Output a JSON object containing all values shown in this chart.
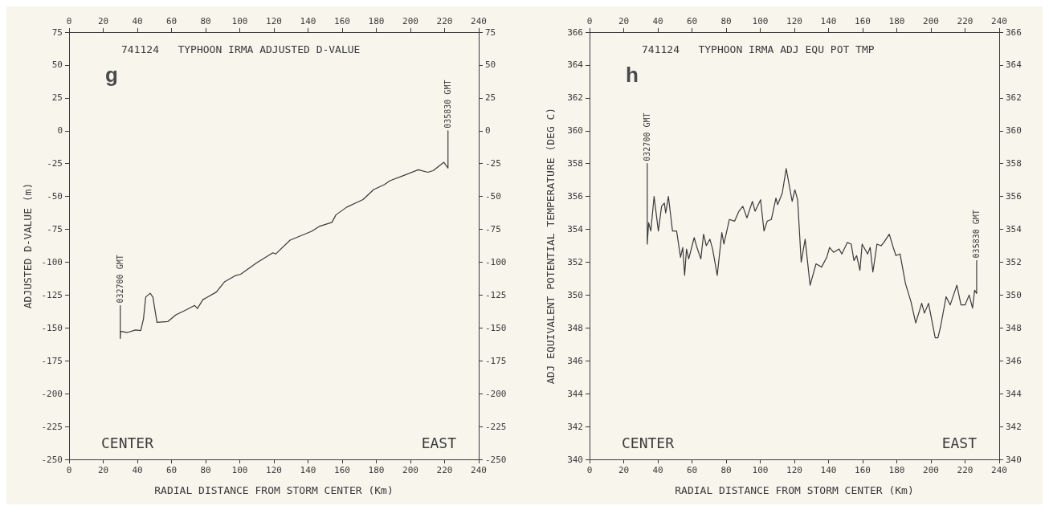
{
  "chart_data": [
    {
      "type": "line",
      "title": "741124   TYPHOON IRMA ADJUSTED D-VALUE",
      "xlabel": "RADIAL DISTANCE FROM STORM CENTER (Km)",
      "ylabel": "ADJUSTED D-VALUE (m)",
      "series": [
        {
          "color": "#3a3a3a",
          "x": [
            30,
            30,
            30.2,
            34.1,
            38.9,
            42,
            43.6,
            44.9,
            47.5,
            49.1,
            51.5,
            57.8,
            62.6,
            68.9,
            73.6,
            75.2,
            78.4,
            86.3,
            91,
            97.4,
            100.5,
            109.9,
            119.4,
            121,
            129.5,
            142.1,
            146.9,
            154,
            156.4,
            162.7,
            172.2,
            178.5,
            184.8,
            188,
            195.9,
            204.6,
            210.1,
            213.3,
            219.6,
            222,
            222
          ],
          "values": [
            -133,
            -158,
            -152.5,
            -153.5,
            -151.6,
            -152,
            -143,
            -126.5,
            -123.6,
            -126.5,
            -145.8,
            -145.2,
            -140,
            -136.1,
            -132.9,
            -135.2,
            -128.5,
            -122.7,
            -115,
            -110.2,
            -109.2,
            -100.5,
            -92.8,
            -93.8,
            -83.2,
            -76.5,
            -72.6,
            -69.7,
            -63.9,
            -58.1,
            -52.4,
            -44.7,
            -40.9,
            -38,
            -34.1,
            -29.7,
            -31.6,
            -30.4,
            -24,
            -28.4,
            0
          ]
        }
      ],
      "xlim": [
        0,
        240
      ],
      "xticks": [
        0,
        20,
        40,
        60,
        80,
        100,
        120,
        140,
        160,
        180,
        200,
        220,
        240
      ],
      "x2lim": [
        0,
        240
      ],
      "x2ticks": [
        0,
        20,
        40,
        60,
        80,
        100,
        120,
        140,
        160,
        180,
        200,
        220,
        240
      ],
      "ylim": [
        -250,
        75
      ],
      "yticks": [
        -250,
        -225,
        -200,
        -175,
        -150,
        -125,
        -100,
        -75,
        -50,
        -25,
        0,
        25,
        50,
        75
      ],
      "y2lim": [
        -250,
        75
      ],
      "y2ticks": [
        -250,
        -225,
        -200,
        -175,
        -150,
        -125,
        -100,
        -75,
        -50,
        -25,
        0,
        25,
        50,
        75
      ],
      "grid": false,
      "marker": "none",
      "line_style": "solid",
      "annotations": [
        "g",
        "CENTER",
        "EAST",
        {
          "text": "032700 GMT",
          "x": 30,
          "y": -133
        },
        {
          "text": "035830 GMT",
          "x": 222,
          "y": 0
        }
      ]
    },
    {
      "type": "line",
      "title": "741124   TYPHOON IRMA ADJ EQU POT TMP",
      "xlabel": "RADIAL DISTANCE FROM STORM CENTER (Km)",
      "ylabel": "ADJ EQUIVALENT POTENTIAL TEMPERATURE (DEG C)",
      "series": [
        {
          "color": "#3a3a3a",
          "x": [
            33.8,
            33.8,
            33.8,
            34.6,
            35.9,
            37.8,
            40.3,
            42.2,
            43.8,
            44.6,
            46.2,
            48.6,
            51,
            53.3,
            54.6,
            55.7,
            56.8,
            58.1,
            61.3,
            62.9,
            65.2,
            66.8,
            68.4,
            70.5,
            72.1,
            74.8,
            77.5,
            78.7,
            81.9,
            85,
            87.5,
            89.8,
            92.2,
            95.4,
            97,
            100.2,
            102.2,
            104.1,
            106.5,
            109.2,
            110.2,
            112.9,
            115.2,
            118.7,
            120.3,
            121.9,
            124,
            126.3,
            129.2,
            132.7,
            135.9,
            139,
            140.6,
            143,
            146.2,
            147.8,
            151,
            153.3,
            154.9,
            156.5,
            158.4,
            159.7,
            162.9,
            164.4,
            166,
            168.4,
            170.8,
            172.4,
            175.6,
            177.9,
            179.5,
            181.9,
            185.1,
            188.3,
            191.1,
            194.6,
            196.2,
            198.6,
            202.5,
            204.1,
            205.7,
            208.9,
            211.3,
            215.2,
            217.6,
            220,
            222.4,
            224.4,
            225.6,
            226.8,
            226.8
          ],
          "values": [
            358,
            355.9,
            353.1,
            354.4,
            353.9,
            356,
            353.9,
            355.4,
            355.6,
            355,
            356,
            353.9,
            353.9,
            352.3,
            352.9,
            351.2,
            352.8,
            352.2,
            353.5,
            352.9,
            352.2,
            353.7,
            353,
            353.4,
            352.8,
            351.2,
            353.8,
            353.1,
            354.6,
            354.5,
            355.1,
            355.4,
            354.7,
            355.7,
            355.1,
            355.8,
            353.9,
            354.5,
            354.6,
            355.9,
            355.5,
            356.2,
            357.7,
            355.7,
            356.4,
            355.8,
            352,
            353.4,
            350.6,
            351.9,
            351.7,
            352.3,
            352.9,
            352.6,
            352.8,
            352.5,
            353.2,
            353.1,
            352.1,
            352.4,
            351.5,
            353.1,
            352.5,
            352.9,
            351.4,
            353.1,
            353,
            353.2,
            353.7,
            352.9,
            352.4,
            352.5,
            350.7,
            349.6,
            348.3,
            349.5,
            348.9,
            349.5,
            347.4,
            347.4,
            348.1,
            349.9,
            349.4,
            350.6,
            349.4,
            349.4,
            350,
            349.2,
            350.3,
            350.1,
            352.1
          ]
        }
      ],
      "xlim": [
        0,
        240
      ],
      "xticks": [
        0,
        20,
        40,
        60,
        80,
        100,
        120,
        140,
        160,
        180,
        200,
        220,
        240
      ],
      "x2lim": [
        0,
        240
      ],
      "x2ticks": [
        0,
        20,
        40,
        60,
        80,
        100,
        120,
        140,
        160,
        180,
        200,
        220,
        240
      ],
      "ylim": [
        340,
        366
      ],
      "yticks": [
        340,
        342,
        344,
        346,
        348,
        350,
        352,
        354,
        356,
        358,
        360,
        362,
        364,
        366
      ],
      "y2lim": [
        340,
        366
      ],
      "y2ticks": [
        340,
        342,
        344,
        346,
        348,
        350,
        352,
        354,
        356,
        358,
        360,
        362,
        364,
        366
      ],
      "grid": false,
      "marker": "none",
      "line_style": "solid",
      "annotations": [
        "h",
        "CENTER",
        "EAST",
        {
          "text": "032700 GMT",
          "x": 33.8,
          "y": 358
        },
        {
          "text": "035830 GMT",
          "x": 226.8,
          "y": 352.1
        }
      ]
    }
  ]
}
